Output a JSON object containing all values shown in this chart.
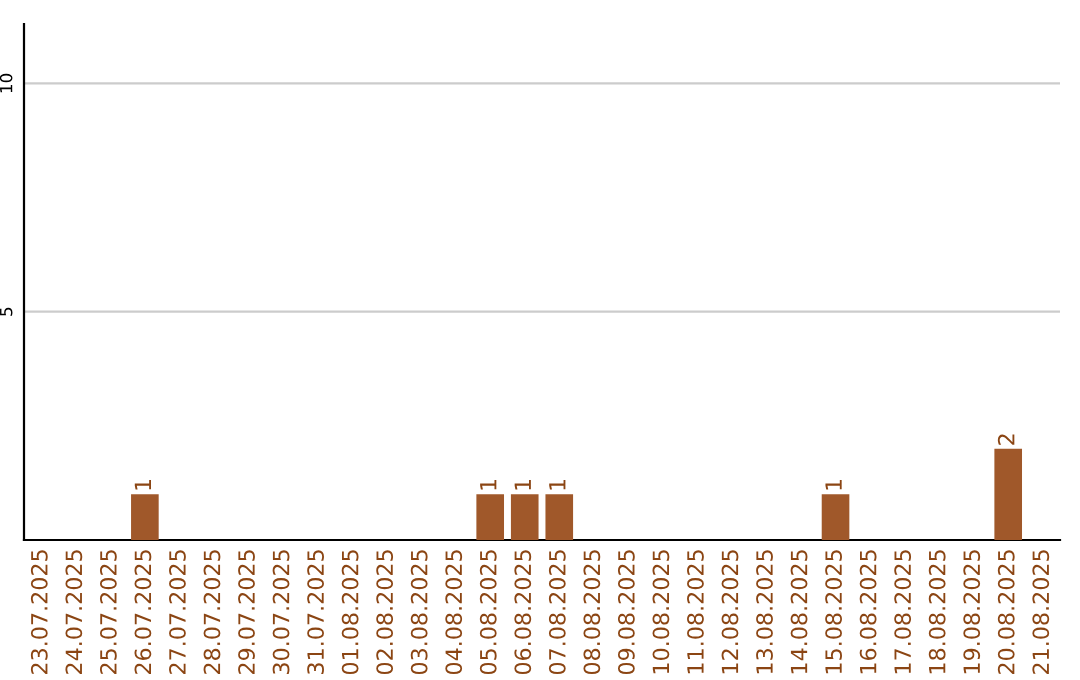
{
  "chart_data": {
    "type": "bar",
    "categories": [
      "23.07.2025",
      "24.07.2025",
      "25.07.2025",
      "26.07.2025",
      "27.07.2025",
      "28.07.2025",
      "29.07.2025",
      "30.07.2025",
      "31.07.2025",
      "01.08.2025",
      "02.08.2025",
      "03.08.2025",
      "04.08.2025",
      "05.08.2025",
      "06.08.2025",
      "07.08.2025",
      "08.08.2025",
      "09.08.2025",
      "10.08.2025",
      "11.08.2025",
      "12.08.2025",
      "13.08.2025",
      "14.08.2025",
      "15.08.2025",
      "16.08.2025",
      "17.08.2025",
      "18.08.2025",
      "19.08.2025",
      "20.08.2025",
      "21.08.2025"
    ],
    "values": [
      0,
      0,
      0,
      1,
      0,
      0,
      0,
      0,
      0,
      0,
      0,
      0,
      0,
      1,
      1,
      1,
      0,
      0,
      0,
      0,
      0,
      0,
      0,
      1,
      0,
      0,
      0,
      0,
      2,
      0
    ],
    "value_labels": [
      null,
      null,
      null,
      "1",
      null,
      null,
      null,
      null,
      null,
      null,
      null,
      null,
      null,
      "1",
      "1",
      "1",
      null,
      null,
      null,
      null,
      null,
      null,
      null,
      "1",
      null,
      null,
      null,
      null,
      "2",
      null
    ],
    "color": "#a0582a",
    "ylim": [
      0,
      11.3
    ],
    "yticks": [
      5,
      10
    ],
    "grid": "y",
    "legend": false
  }
}
